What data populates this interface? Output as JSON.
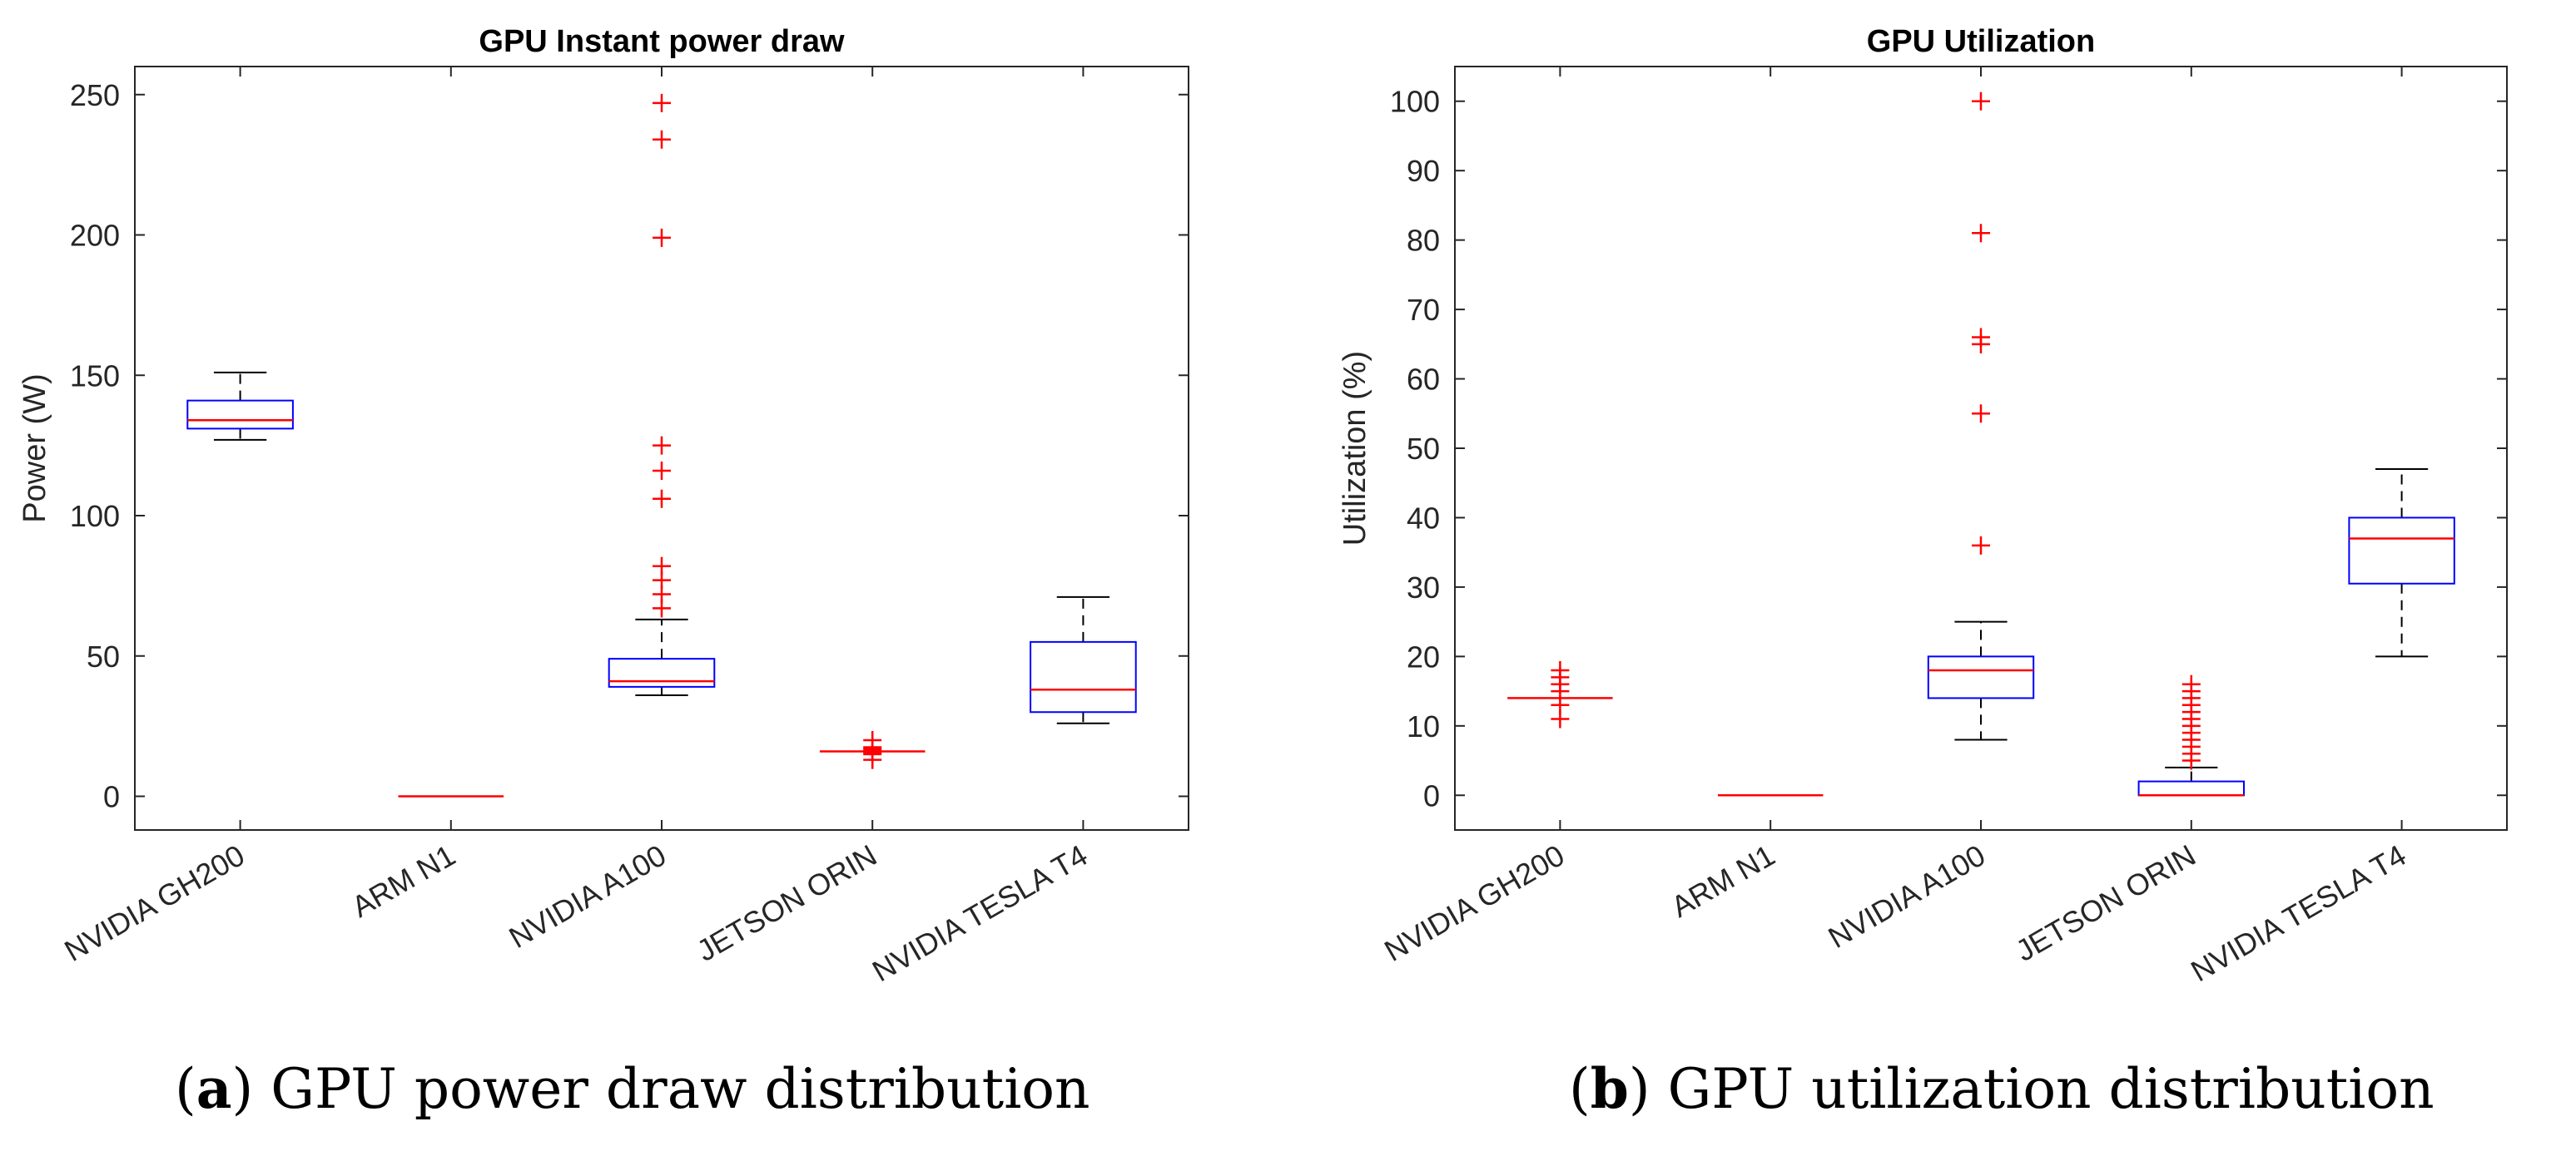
{
  "captions": [
    {
      "label": "a",
      "text": "GPU power draw distribution"
    },
    {
      "label": "b",
      "text": "GPU utilization distribution"
    }
  ],
  "colors": {
    "box": "#0000ff",
    "median": "#ff0000",
    "outlier": "#ff0000",
    "whisker": "#000000",
    "axis": "#262626"
  },
  "chart_data": [
    {
      "type": "boxplot",
      "title": "GPU Instant power draw",
      "xlabel": "",
      "ylabel": "Power (W)",
      "ylim": [
        -12,
        260
      ],
      "yticks": [
        0,
        50,
        100,
        150,
        200,
        250
      ],
      "categories": [
        "NVIDIA GH200",
        "ARM N1",
        "NVIDIA A100",
        "JETSON ORIN",
        "NVIDIA TESLA T4"
      ],
      "boxes": [
        {
          "whisker_low": 127,
          "q1": 131,
          "median": 134,
          "q3": 141,
          "whisker_high": 151,
          "outliers": []
        },
        {
          "whisker_low": 0,
          "q1": 0,
          "median": 0,
          "q3": 0,
          "whisker_high": 0,
          "outliers": []
        },
        {
          "whisker_low": 36,
          "q1": 39,
          "median": 41,
          "q3": 49,
          "whisker_high": 63,
          "outliers": [
            67,
            72,
            77,
            82,
            106,
            116,
            125,
            199,
            234,
            247
          ]
        },
        {
          "whisker_low": 16,
          "q1": 16,
          "median": 16,
          "q3": 16,
          "whisker_high": 16,
          "outliers": [
            13,
            15,
            15.5,
            16.5,
            17,
            17.5,
            20
          ]
        },
        {
          "whisker_low": 26,
          "q1": 30,
          "median": 38,
          "q3": 55,
          "whisker_high": 71,
          "outliers": []
        }
      ]
    },
    {
      "type": "boxplot",
      "title": "GPU Utilization",
      "xlabel": "",
      "ylabel": "Utilization (%)",
      "ylim": [
        -5,
        105
      ],
      "yticks": [
        0,
        10,
        20,
        30,
        40,
        50,
        60,
        70,
        80,
        90,
        100
      ],
      "categories": [
        "NVIDIA GH200",
        "ARM N1",
        "NVIDIA A100",
        "JETSON ORIN",
        "NVIDIA TESLA T4"
      ],
      "boxes": [
        {
          "whisker_low": 14,
          "q1": 14,
          "median": 14,
          "q3": 14,
          "whisker_high": 14,
          "outliers": [
            11,
            13,
            15,
            16,
            17,
            18
          ]
        },
        {
          "whisker_low": 0,
          "q1": 0,
          "median": 0,
          "q3": 0,
          "whisker_high": 0,
          "outliers": []
        },
        {
          "whisker_low": 8,
          "q1": 14,
          "median": 18,
          "q3": 20,
          "whisker_high": 25,
          "outliers": [
            36,
            55,
            65,
            66,
            81,
            100
          ]
        },
        {
          "whisker_low": 0,
          "q1": 0,
          "median": 0,
          "q3": 2,
          "whisker_high": 4,
          "outliers": [
            5,
            6,
            7,
            8,
            9,
            10,
            11,
            12,
            13,
            14,
            15,
            16
          ]
        },
        {
          "whisker_low": 20,
          "q1": 30.5,
          "median": 37,
          "q3": 40,
          "whisker_high": 47,
          "outliers": []
        }
      ]
    }
  ]
}
